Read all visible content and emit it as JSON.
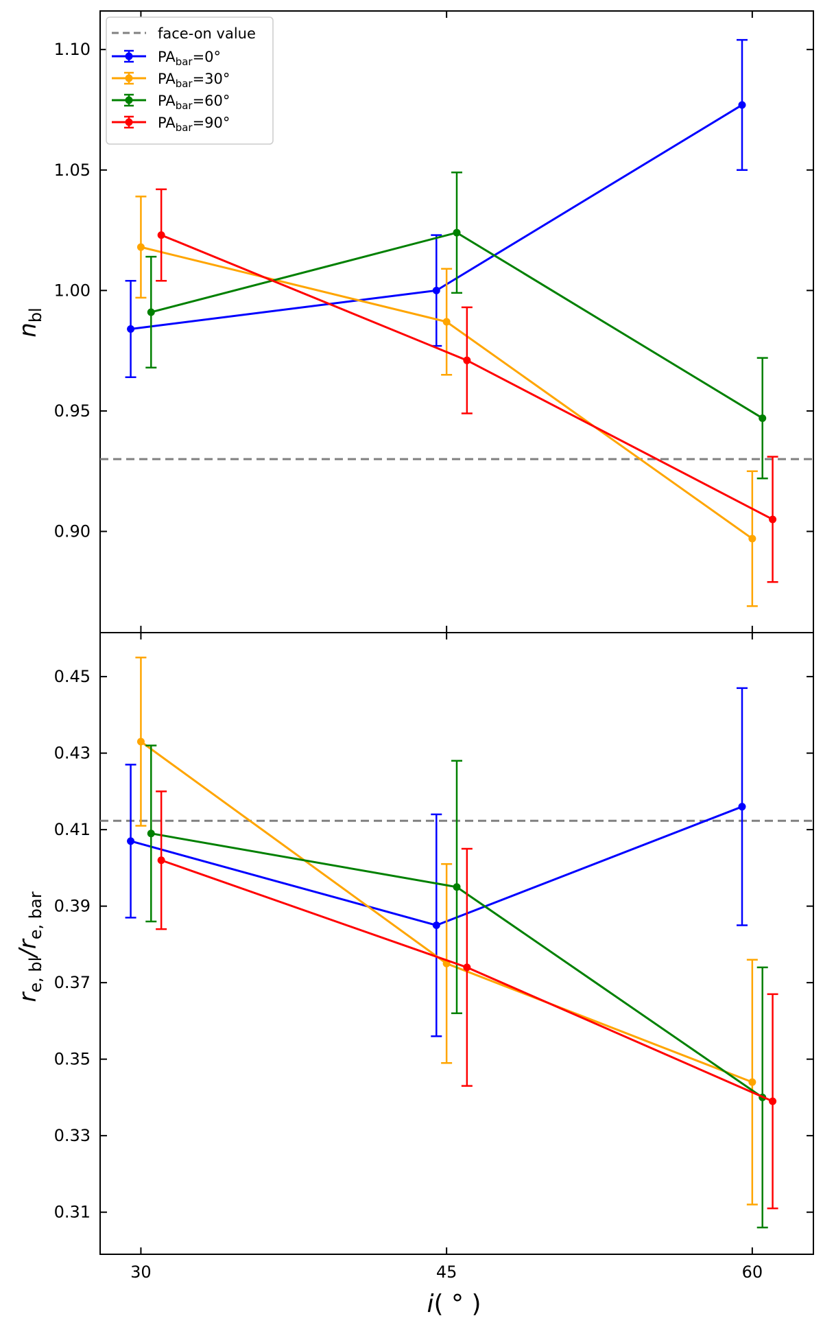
{
  "chart_data": {
    "type": "line",
    "shared_x": {
      "label_main": "i",
      "label_suffix": "( ° )",
      "ticks": [
        30,
        45,
        60
      ],
      "xlim": [
        28,
        63
      ]
    },
    "legend": {
      "reference_label": "face-on value",
      "entries": [
        {
          "prefix": "PA",
          "sub": "bar",
          "suffix": "=0°"
        },
        {
          "prefix": "PA",
          "sub": "bar",
          "suffix": "=30°"
        },
        {
          "prefix": "PA",
          "sub": "bar",
          "suffix": "=60°"
        },
        {
          "prefix": "PA",
          "sub": "bar",
          "suffix": "=90°"
        }
      ]
    },
    "series_colors": [
      "#0000ff",
      "#ffa500",
      "#008000",
      "#ff0000"
    ],
    "reference_color": "#808080",
    "panels": [
      {
        "name": "n_bl",
        "ylabel_main": "n",
        "ylabel_sub": "bl",
        "ylim": [
          0.858,
          1.116
        ],
        "yticks": [
          "0.90",
          "0.95",
          "1.00",
          "1.05",
          "1.10"
        ],
        "reference_value": 0.93,
        "series": [
          {
            "name": "PA_bar=0°",
            "x": [
              29.5,
              44.5,
              59.5
            ],
            "y": [
              0.984,
              1.0,
              1.077
            ],
            "err_low": [
              0.964,
              0.977,
              1.05
            ],
            "err_high": [
              1.004,
              1.023,
              1.104
            ]
          },
          {
            "name": "PA_bar=30°",
            "x": [
              30.0,
              45.0,
              60.0
            ],
            "y": [
              1.018,
              0.987,
              0.897
            ],
            "err_low": [
              0.997,
              0.965,
              0.869
            ],
            "err_high": [
              1.039,
              1.009,
              0.925
            ]
          },
          {
            "name": "PA_bar=60°",
            "x": [
              30.5,
              45.5,
              60.5
            ],
            "y": [
              0.991,
              1.024,
              0.947
            ],
            "err_low": [
              0.968,
              0.999,
              0.922
            ],
            "err_high": [
              1.014,
              1.049,
              0.972
            ]
          },
          {
            "name": "PA_bar=90°",
            "x": [
              31.0,
              46.0,
              61.0
            ],
            "y": [
              1.023,
              0.971,
              0.905
            ],
            "err_low": [
              1.004,
              0.949,
              0.879
            ],
            "err_high": [
              1.042,
              0.993,
              0.931
            ]
          }
        ]
      },
      {
        "name": "re_ratio",
        "ylabel_main": "r",
        "ylabel_sub1": "e, bl",
        "ylabel_mid": "/r",
        "ylabel_sub2": "e, bar",
        "ylim": [
          0.299,
          0.4615
        ],
        "yticks": [
          "0.31",
          "0.33",
          "0.35",
          "0.37",
          "0.39",
          "0.41",
          "0.43",
          "0.45"
        ],
        "reference_value": 0.4123,
        "series": [
          {
            "name": "PA_bar=0°",
            "x": [
              29.5,
              44.5,
              59.5
            ],
            "y": [
              0.407,
              0.385,
              0.416
            ],
            "err_low": [
              0.387,
              0.356,
              0.385
            ],
            "err_high": [
              0.427,
              0.414,
              0.447
            ]
          },
          {
            "name": "PA_bar=30°",
            "x": [
              30.0,
              45.0,
              60.0
            ],
            "y": [
              0.433,
              0.375,
              0.344
            ],
            "err_low": [
              0.411,
              0.349,
              0.312
            ],
            "err_high": [
              0.455,
              0.401,
              0.376
            ]
          },
          {
            "name": "PA_bar=60°",
            "x": [
              30.5,
              45.5,
              60.5
            ],
            "y": [
              0.409,
              0.395,
              0.34
            ],
            "err_low": [
              0.386,
              0.362,
              0.306
            ],
            "err_high": [
              0.432,
              0.428,
              0.374
            ]
          },
          {
            "name": "PA_bar=90°",
            "x": [
              31.0,
              46.0,
              61.0
            ],
            "y": [
              0.402,
              0.374,
              0.339
            ],
            "err_low": [
              0.384,
              0.343,
              0.311
            ],
            "err_high": [
              0.42,
              0.405,
              0.367
            ]
          }
        ]
      }
    ]
  }
}
